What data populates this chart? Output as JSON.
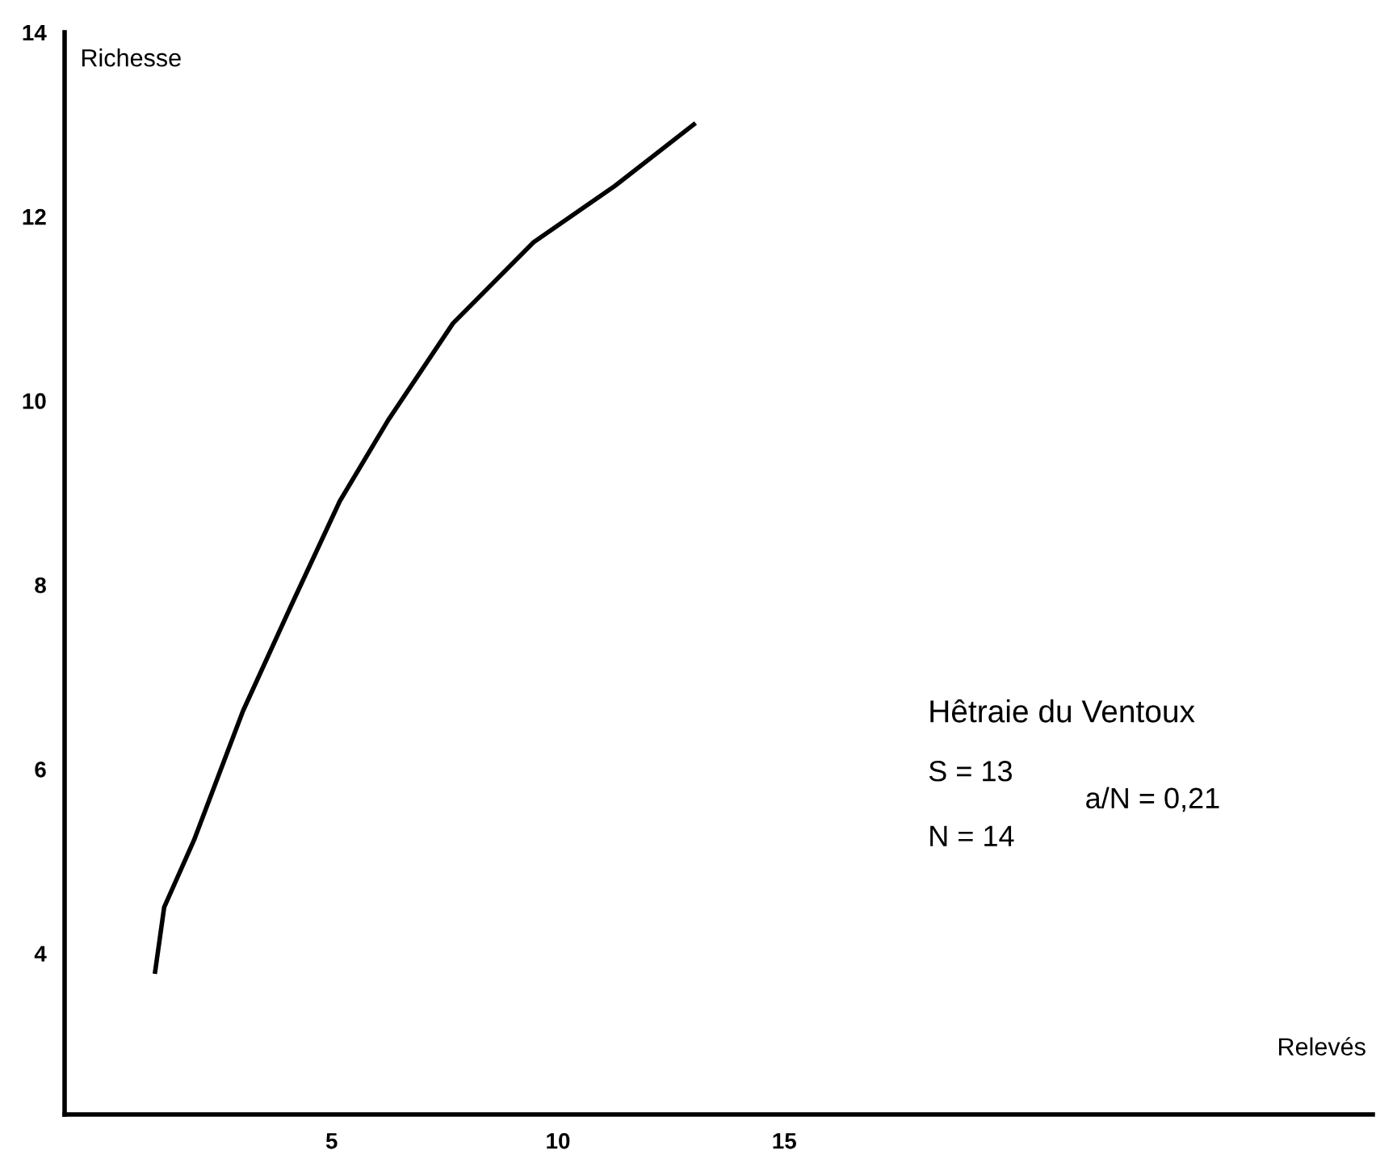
{
  "chart_data": {
    "type": "line",
    "xlabel": "Relevés",
    "ylabel": "Richesse",
    "series": [
      {
        "color": "#000000",
        "x": [
          1.1,
          1.3,
          1.96,
          3.04,
          4.1,
          5.18,
          6.25,
          7.68,
          9.46,
          11.25,
          13.0
        ],
        "values": [
          3.8,
          4.5,
          5.23,
          6.63,
          7.77,
          8.91,
          9.79,
          10.84,
          11.72,
          12.33,
          13.0
        ]
      }
    ],
    "xlim": [
      -0.9,
      28
    ],
    "ylim": [
      2.25,
      14
    ],
    "xticks": [
      5,
      10,
      15
    ],
    "yticks": [
      4,
      6,
      8,
      10,
      12,
      14
    ],
    "annotations": [
      "Hêtraie du Ventoux",
      "S = 13",
      "N = 14",
      "a/N = 0,21"
    ],
    "grid": false,
    "legend": false,
    "marker": "none",
    "line_style": "solid"
  }
}
